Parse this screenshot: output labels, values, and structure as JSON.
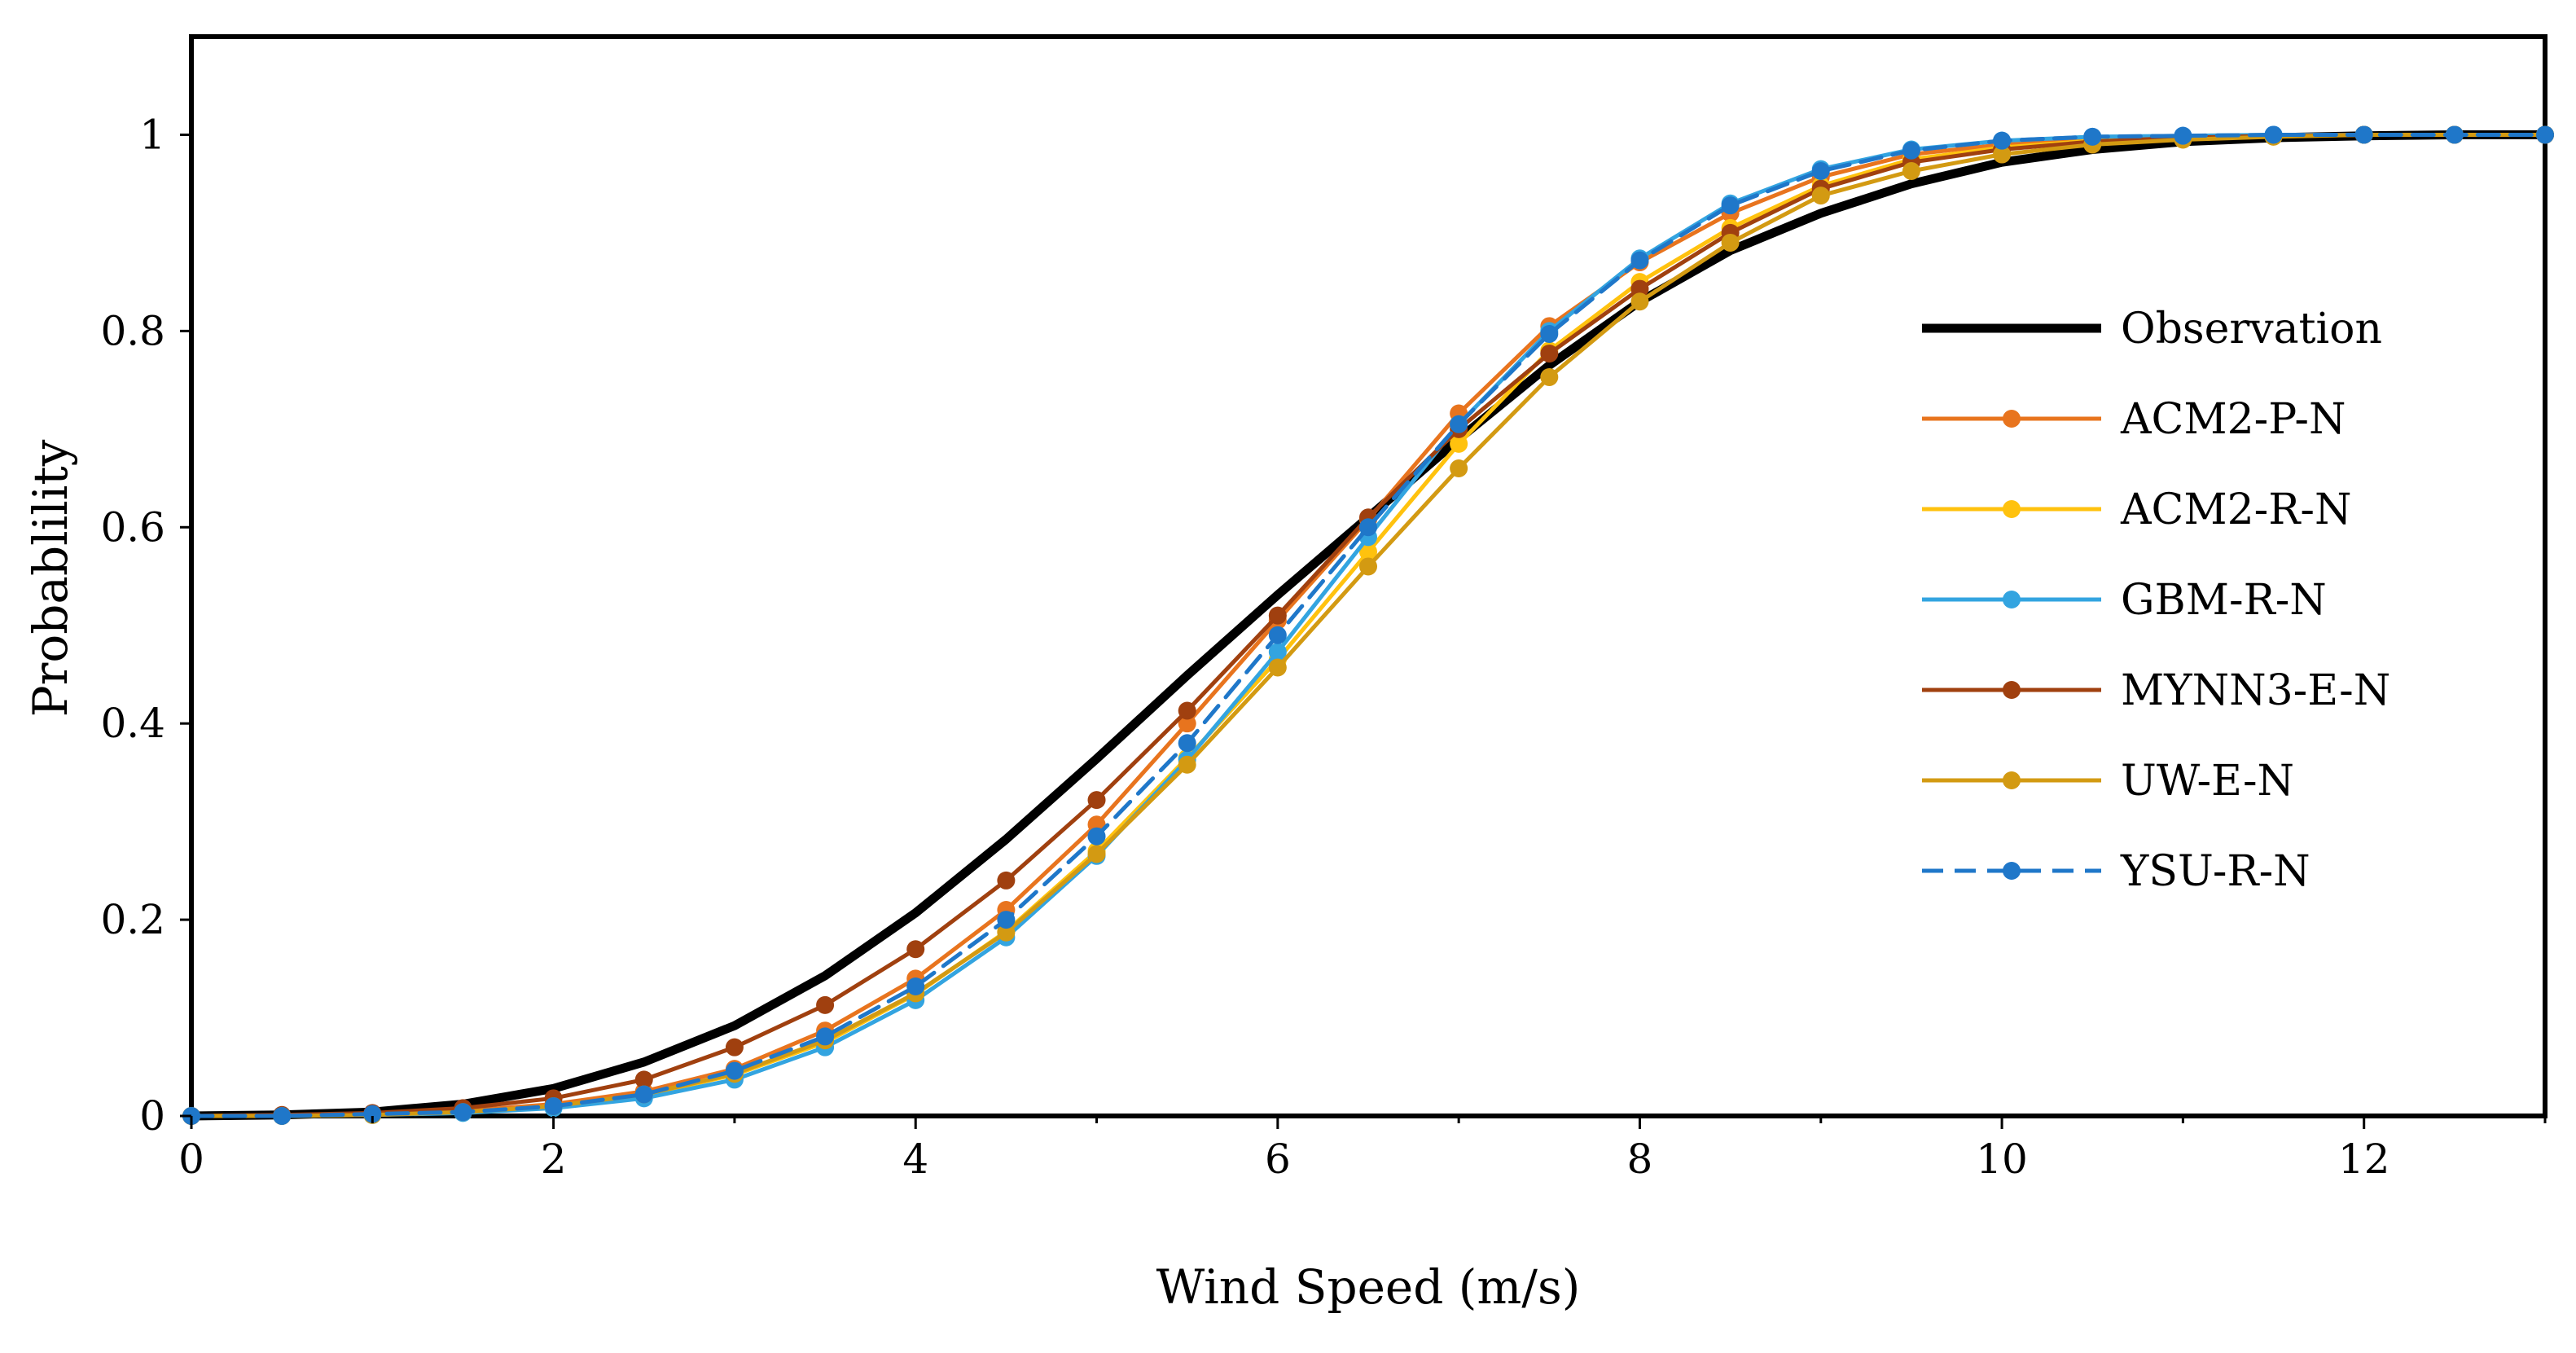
{
  "chart_data": {
    "type": "line",
    "title": "",
    "xlabel": "Wind Speed (m/s)",
    "ylabel": "Probablility",
    "xlim": [
      0,
      13
    ],
    "ylim": [
      0,
      1.1
    ],
    "xticks": [
      0,
      2,
      4,
      6,
      8,
      10,
      12
    ],
    "yticks": [
      0,
      0.2,
      0.4,
      0.6,
      0.8,
      1
    ],
    "xtick_labels": [
      "0",
      "2",
      "4",
      "6",
      "8",
      "10",
      "12"
    ],
    "ytick_labels": [
      "0",
      "0.2",
      "0.4",
      "0.6",
      "0.8",
      "1"
    ],
    "grid": false,
    "legend_position": "right",
    "x": [
      0,
      0.5,
      1,
      1.5,
      2,
      2.5,
      3,
      3.5,
      4,
      4.5,
      5,
      5.5,
      6,
      6.5,
      7,
      7.5,
      8,
      8.5,
      9,
      9.5,
      10,
      10.5,
      11,
      11.5,
      12,
      12.5,
      13
    ],
    "series": [
      {
        "name": "Observation",
        "color": "#000000",
        "style": "solid-thick",
        "markers": false,
        "values": [
          0,
          0.001,
          0.004,
          0.012,
          0.028,
          0.055,
          0.092,
          0.143,
          0.207,
          0.282,
          0.364,
          0.449,
          0.531,
          0.61,
          0.69,
          0.765,
          0.83,
          0.882,
          0.92,
          0.95,
          0.972,
          0.985,
          0.993,
          0.997,
          0.999,
          1.0,
          1.0
        ]
      },
      {
        "name": "ACM2-P-N",
        "color": "#E8741E",
        "style": "solid",
        "markers": true,
        "values": [
          0,
          0.0,
          0.002,
          0.005,
          0.012,
          0.025,
          0.048,
          0.087,
          0.14,
          0.21,
          0.297,
          0.4,
          0.505,
          0.608,
          0.716,
          0.805,
          0.87,
          0.92,
          0.957,
          0.98,
          0.99,
          0.996,
          0.998,
          0.999,
          1.0,
          1.0,
          1.0
        ]
      },
      {
        "name": "ACM2-R-N",
        "color": "#FFC20E",
        "style": "solid",
        "markers": true,
        "values": [
          0,
          0.0,
          0.002,
          0.004,
          0.01,
          0.021,
          0.042,
          0.075,
          0.124,
          0.188,
          0.27,
          0.365,
          0.465,
          0.575,
          0.685,
          0.78,
          0.85,
          0.905,
          0.948,
          0.975,
          0.987,
          0.994,
          0.997,
          0.999,
          1.0,
          1.0,
          1.0
        ]
      },
      {
        "name": "GBM-R-N",
        "color": "#33A4E0",
        "style": "solid",
        "markers": true,
        "values": [
          0,
          0.0,
          0.001,
          0.003,
          0.008,
          0.018,
          0.037,
          0.07,
          0.118,
          0.182,
          0.265,
          0.363,
          0.473,
          0.59,
          0.705,
          0.8,
          0.874,
          0.93,
          0.965,
          0.985,
          0.994,
          0.998,
          0.999,
          1.0,
          1.0,
          1.0,
          1.0
        ]
      },
      {
        "name": "MYNN3-E-N",
        "color": "#A0400F",
        "style": "solid",
        "markers": true,
        "values": [
          0,
          0.001,
          0.003,
          0.008,
          0.018,
          0.037,
          0.07,
          0.113,
          0.17,
          0.24,
          0.322,
          0.413,
          0.51,
          0.61,
          0.7,
          0.777,
          0.843,
          0.9,
          0.945,
          0.972,
          0.985,
          0.993,
          0.997,
          0.999,
          1.0,
          1.0,
          1.0
        ]
      },
      {
        "name": "UW-E-N",
        "color": "#D39A12",
        "style": "solid",
        "markers": true,
        "values": [
          0,
          0.0,
          0.001,
          0.004,
          0.01,
          0.022,
          0.043,
          0.077,
          0.125,
          0.187,
          0.267,
          0.358,
          0.457,
          0.56,
          0.66,
          0.753,
          0.83,
          0.89,
          0.938,
          0.963,
          0.98,
          0.99,
          0.995,
          0.998,
          1.0,
          1.0,
          1.0
        ]
      },
      {
        "name": "YSU-R-N",
        "color": "#1F77C9",
        "style": "dashed",
        "markers": true,
        "values": [
          0,
          0.0,
          0.002,
          0.004,
          0.01,
          0.022,
          0.046,
          0.081,
          0.132,
          0.2,
          0.285,
          0.38,
          0.49,
          0.6,
          0.705,
          0.797,
          0.872,
          0.928,
          0.963,
          0.984,
          0.994,
          0.998,
          0.999,
          1.0,
          1.0,
          1.0,
          1.0
        ]
      }
    ]
  }
}
